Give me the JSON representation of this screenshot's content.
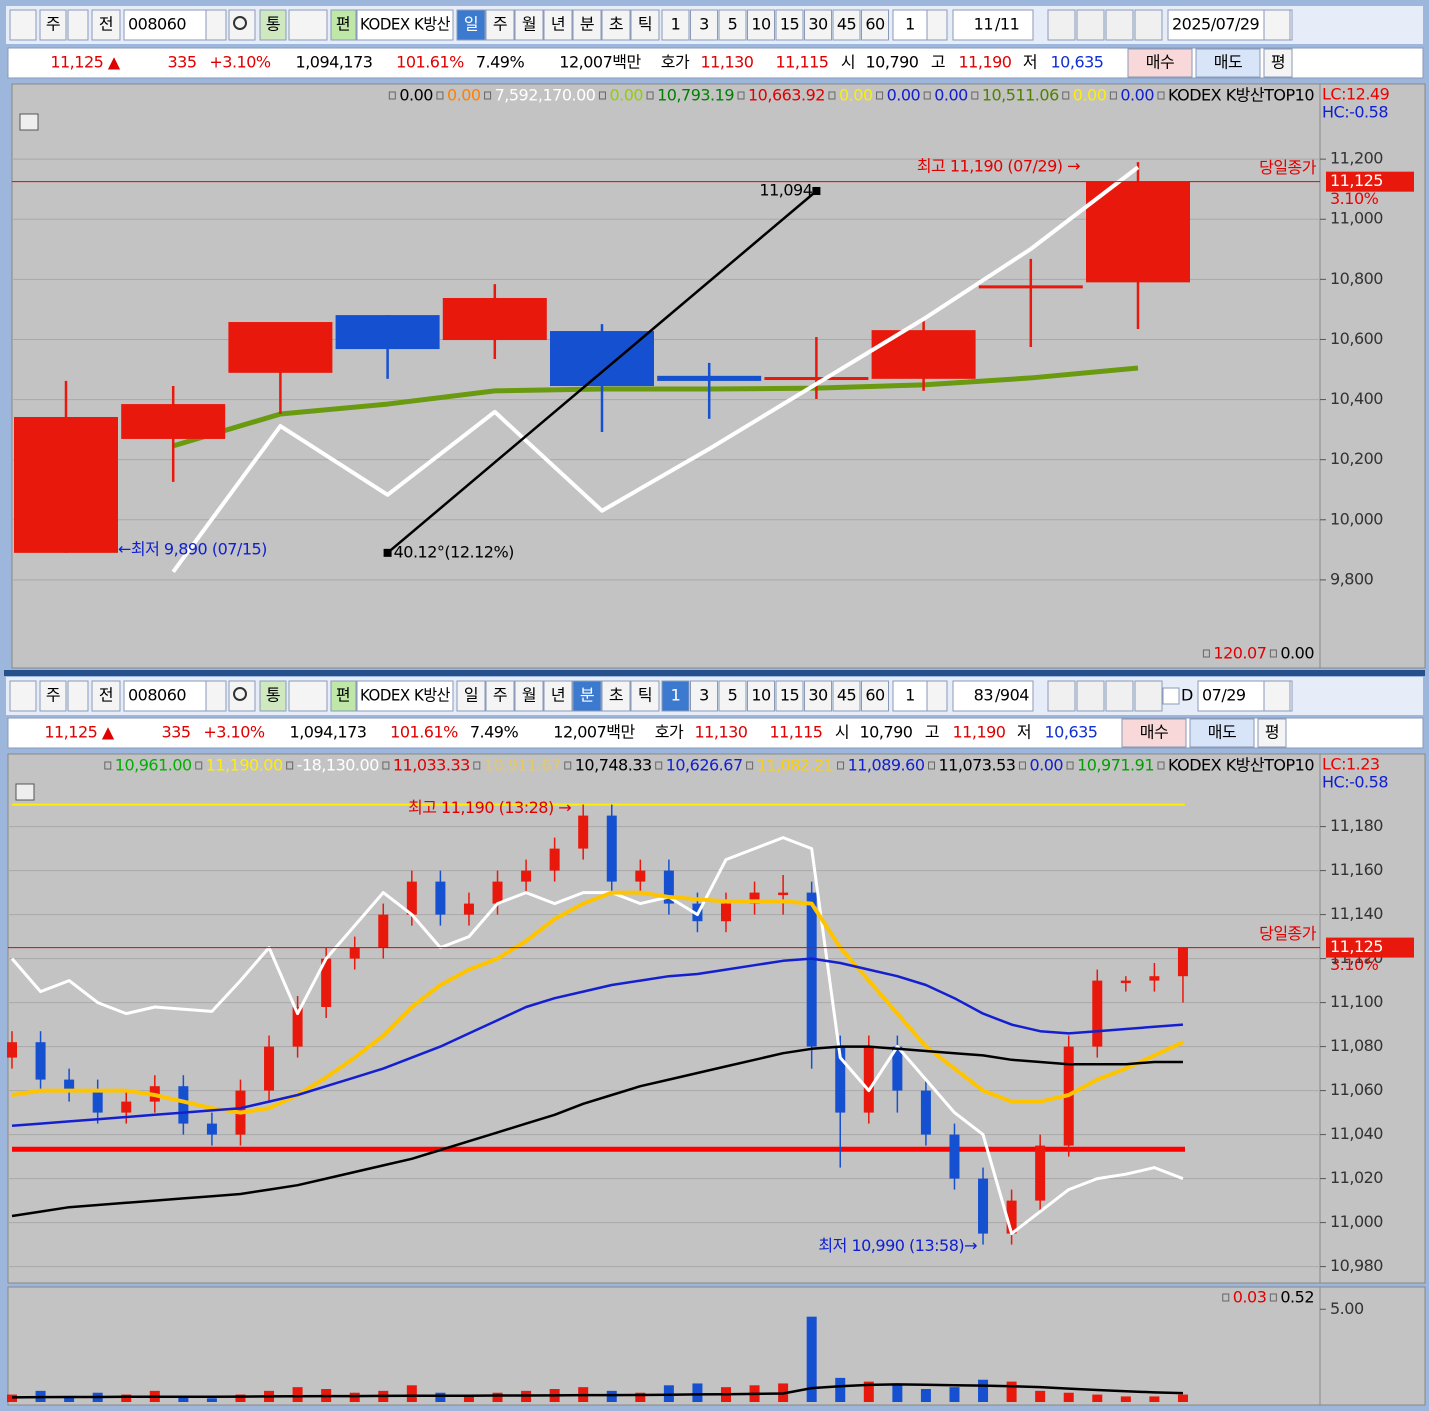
{
  "toolbars": [
    {
      "market": "주",
      "prev": "전",
      "code": "008060",
      "tong": "통",
      "pyeon": "편",
      "name": "KODEX K방산",
      "periods": [
        "일",
        "주",
        "월",
        "년",
        "분",
        "초",
        "틱"
      ],
      "active_period": 0,
      "intervals": [
        "1",
        "3",
        "5",
        "10",
        "15",
        "30",
        "45",
        "60"
      ],
      "active_interval": -1,
      "multiplier": "1",
      "count": "11",
      "total": "/11",
      "date": "2025/07/29"
    },
    {
      "market": "주",
      "prev": "전",
      "code": "008060",
      "tong": "통",
      "pyeon": "편",
      "name": "KODEX K방산",
      "periods": [
        "일",
        "주",
        "월",
        "년",
        "분",
        "초",
        "틱"
      ],
      "active_period": 4,
      "intervals": [
        "1",
        "3",
        "5",
        "10",
        "15",
        "30",
        "45",
        "60"
      ],
      "active_interval": 0,
      "multiplier": "1",
      "count": "83",
      "total": "/904",
      "check": "D",
      "date": "07/29"
    }
  ],
  "info_bar": {
    "items": [
      {
        "text": "11,125 ▲",
        "color": "#e00000"
      },
      {
        "text": "335",
        "color": "#e00000"
      },
      {
        "text": "+3.10%",
        "color": "#e00000"
      },
      {
        "text": "1,094,173",
        "color": "#000000"
      },
      {
        "text": "101.61%",
        "color": "#e00000"
      },
      {
        "text": "7.49%",
        "color": "#000000"
      },
      {
        "text": "12,007백만",
        "color": "#000000"
      },
      {
        "text": "호가",
        "color": "#000000"
      },
      {
        "text": "11,130",
        "color": "#e00000"
      },
      {
        "text": "11,115",
        "color": "#e00000"
      },
      {
        "text": "시",
        "color": "#000000"
      },
      {
        "text": "10,790",
        "color": "#000000"
      },
      {
        "text": "고",
        "color": "#000000"
      },
      {
        "text": "11,190",
        "color": "#e00000"
      },
      {
        "text": "저",
        "color": "#000000"
      },
      {
        "text": "10,635",
        "color": "#1030d0"
      }
    ],
    "buttons": [
      "매수",
      "매도",
      "평"
    ]
  },
  "chart_data": [
    {
      "type": "candlestick",
      "up_color": "#e8180c",
      "down_color": "#1450d0",
      "open": [
        9890,
        10269,
        10489,
        10681,
        10598,
        10628,
        10479,
        10465,
        10469,
        10770,
        10790
      ],
      "high": [
        10462,
        10445,
        10658,
        10681,
        10784,
        10651,
        10522,
        10608,
        10668,
        10868,
        11190
      ],
      "low": [
        9890,
        10126,
        10352,
        10469,
        10535,
        10292,
        10336,
        10402,
        10429,
        10575,
        10635
      ],
      "close": [
        10342,
        10385,
        10658,
        10568,
        10738,
        10445,
        10462,
        10475,
        10631,
        10780,
        11125
      ],
      "series": [
        {
          "color": "#6a9a10",
          "width": 5,
          "values": [
            null,
            10246,
            10352,
            10385,
            10429,
            10435,
            10435,
            10438,
            10449,
            10472,
            10505
          ]
        },
        {
          "color": "#ffffff",
          "width": 4,
          "values": [
            null,
            9827,
            10312,
            10083,
            10359,
            10030,
            10236,
            10452,
            10668,
            10901,
            11173
          ]
        }
      ],
      "ylim": [
        9600,
        11450
      ],
      "yticks": [
        {
          "value": 11200,
          "label": "11,200"
        },
        {
          "value": 11000,
          "label": "11,000"
        },
        {
          "value": 10800,
          "label": "10,800"
        },
        {
          "value": 10600,
          "label": "10,600"
        },
        {
          "value": 10400,
          "label": "10,400"
        },
        {
          "value": 10200,
          "label": "10,200"
        },
        {
          "value": 10000,
          "label": "10,000"
        },
        {
          "value": 9800,
          "label": "9,800"
        }
      ],
      "grid": true,
      "last": {
        "value": 11125,
        "label": "11,125",
        "change": "3.10%"
      },
      "trendline": {
        "values": [
          9890,
          11094
        ],
        "end_label": "11,094",
        "angle_label": "40.12°(12.12%)"
      },
      "annotations": [
        {
          "text": "최고 11,190 (07/29) →",
          "color": "#e00000"
        },
        {
          "text": "←최저 9,890 (07/15)",
          "color": "#1020d0"
        },
        {
          "text": "당일종가",
          "color": "#e00000"
        }
      ],
      "legend": [
        {
          "text": "0.00",
          "color": "#000000"
        },
        {
          "text": "0.00",
          "color": "#ff8000"
        },
        {
          "text": "7,592,170.00",
          "color": "#ffffff"
        },
        {
          "text": "0.00",
          "color": "#90d000"
        },
        {
          "text": "10,793.19",
          "color": "#008000"
        },
        {
          "text": "10,663.92",
          "color": "#e00000"
        },
        {
          "text": "0.00",
          "color": "#ffee00"
        },
        {
          "text": "0.00",
          "color": "#1020d0"
        },
        {
          "text": "0.00",
          "color": "#1020d0"
        },
        {
          "text": "10,511.06",
          "color": "#508000"
        },
        {
          "text": "0.00",
          "color": "#ffee00"
        },
        {
          "text": "0.00",
          "color": "#1020d0"
        },
        {
          "text": "KODEX K방산TOP10",
          "color": "#000000"
        }
      ],
      "lc": "LC:12.49",
      "hc": "HC:-0.58",
      "sub_legend": [
        {
          "text": "120.07",
          "color": "#e00000"
        },
        {
          "text": "0.00",
          "color": "#000000"
        }
      ]
    },
    {
      "type": "candlestick",
      "up_color": "#e8180c",
      "down_color": "#1450d0",
      "open": [
        11075,
        11082,
        11065,
        11060,
        11050,
        11055,
        11062,
        11045,
        11040,
        11060,
        11080,
        11098,
        11120,
        11125,
        11140,
        11155,
        11140,
        11145,
        11155,
        11160,
        11170,
        11185,
        11155,
        11160,
        11145,
        11137,
        11145,
        11150,
        11150,
        11080,
        11050,
        11080,
        11060,
        11040,
        11020,
        10995,
        11010,
        11035,
        11080,
        11110,
        11110,
        11112
      ],
      "high": [
        11087,
        11087,
        11070,
        11065,
        11060,
        11067,
        11067,
        11050,
        11065,
        11085,
        11103,
        11125,
        11130,
        11145,
        11160,
        11160,
        11150,
        11160,
        11165,
        11175,
        11190,
        11190,
        11165,
        11165,
        11150,
        11150,
        11155,
        11158,
        11155,
        11085,
        11085,
        11085,
        11065,
        11045,
        11025,
        11015,
        11040,
        11085,
        11115,
        11112,
        11118,
        11125
      ],
      "low": [
        11070,
        11060,
        11055,
        11045,
        11045,
        11050,
        11040,
        11035,
        11035,
        11055,
        11075,
        11093,
        11115,
        11120,
        11135,
        11135,
        11135,
        11140,
        11150,
        11155,
        11165,
        11150,
        11150,
        11140,
        11132,
        11132,
        11140,
        11140,
        11070,
        11025,
        11045,
        11050,
        11035,
        11015,
        10990,
        10990,
        11005,
        11030,
        11075,
        11105,
        11105,
        11100
      ],
      "close": [
        11082,
        11065,
        11060,
        11050,
        11055,
        11062,
        11045,
        11040,
        11060,
        11080,
        11098,
        11120,
        11125,
        11140,
        11155,
        11140,
        11145,
        11155,
        11160,
        11170,
        11185,
        11155,
        11160,
        11145,
        11137,
        11145,
        11150,
        11150,
        11080,
        11050,
        11080,
        11060,
        11040,
        11020,
        10995,
        11010,
        11035,
        11080,
        11110,
        11110,
        11112,
        11125
      ],
      "series": [
        {
          "color": "#ffffff",
          "width": 3,
          "values": [
            11120,
            11105,
            11110,
            11100,
            11095,
            11098,
            11097,
            11096,
            11110,
            11125,
            11095,
            11120,
            11135,
            11150,
            11140,
            11125,
            11130,
            11145,
            11150,
            11145,
            11150,
            11150,
            11145,
            11148,
            11140,
            11165,
            11170,
            11175,
            11170,
            11075,
            11060,
            11080,
            11065,
            11050,
            11040,
            10995,
            11005,
            11015,
            11020,
            11022,
            11025,
            11020
          ]
        },
        {
          "color": "#ffc400",
          "width": 4,
          "values": [
            11058,
            11060,
            11060,
            11060,
            11060,
            11058,
            11055,
            11052,
            11050,
            11052,
            11058,
            11066,
            11075,
            11085,
            11098,
            11108,
            11115,
            11120,
            11128,
            11138,
            11145,
            11150,
            11150,
            11148,
            11147,
            11146,
            11146,
            11146,
            11145,
            11125,
            11110,
            11095,
            11080,
            11070,
            11060,
            11055,
            11055,
            11058,
            11065,
            11070,
            11076,
            11082
          ]
        },
        {
          "color": "#1420d0",
          "width": 2.5,
          "values": [
            11044,
            11045,
            11046,
            11047,
            11048,
            11049,
            11050,
            11051,
            11052,
            11055,
            11058,
            11062,
            11066,
            11070,
            11075,
            11080,
            11086,
            11092,
            11098,
            11102,
            11105,
            11108,
            11110,
            11112,
            11113,
            11115,
            11117,
            11119,
            11120,
            11118,
            11115,
            11112,
            11108,
            11102,
            11095,
            11090,
            11087,
            11086,
            11087,
            11088,
            11089,
            11090
          ]
        },
        {
          "color": "#000000",
          "width": 2.5,
          "values": [
            11003,
            11005,
            11007,
            11008,
            11009,
            11010,
            11011,
            11012,
            11013,
            11015,
            11017,
            11020,
            11023,
            11026,
            11029,
            11033,
            11037,
            11041,
            11045,
            11049,
            11054,
            11058,
            11062,
            11065,
            11068,
            11071,
            11074,
            11077,
            11079,
            11080,
            11080,
            11079,
            11078,
            11077,
            11076,
            11074,
            11073,
            11072,
            11072,
            11072,
            11073,
            11073
          ]
        }
      ],
      "hlines": [
        {
          "value": 11190,
          "color": "#ffee00",
          "width": 2
        },
        {
          "value": 11033.33,
          "color": "#ff0000",
          "width": 5
        }
      ],
      "ylim": [
        10973,
        11213
      ],
      "yticks": [
        {
          "value": 11180,
          "label": "11,180"
        },
        {
          "value": 11160,
          "label": "11,160"
        },
        {
          "value": 11140,
          "label": "11,140"
        },
        {
          "value": 11120,
          "label": "11,120"
        },
        {
          "value": 11100,
          "label": "11,100"
        },
        {
          "value": 11080,
          "label": "11,080"
        },
        {
          "value": 11060,
          "label": "11,060"
        },
        {
          "value": 11040,
          "label": "11,040"
        },
        {
          "value": 11020,
          "label": "11,020"
        },
        {
          "value": 11000,
          "label": "11,000"
        },
        {
          "value": 10980,
          "label": "10,980"
        }
      ],
      "grid": true,
      "last": {
        "value": 11125,
        "label": "11,125",
        "change": "3.10%"
      },
      "annotations": [
        {
          "text": "최고 11,190 (13:28) →",
          "color": "#e00000"
        },
        {
          "text": "최저 10,990 (13:58)→",
          "color": "#1020d0"
        },
        {
          "text": "당일종가",
          "color": "#e00000"
        }
      ],
      "legend": [
        {
          "text": "10,961.00",
          "color": "#00b000"
        },
        {
          "text": "11,190.00",
          "color": "#ffee00"
        },
        {
          "text": "-18,130.00",
          "color": "#ffffff"
        },
        {
          "text": "11,033.33",
          "color": "#e00000"
        },
        {
          "text": "10,911.67",
          "color": "#e8c860"
        },
        {
          "text": "10,748.33",
          "color": "#000000"
        },
        {
          "text": "10,626.67",
          "color": "#1020d0"
        },
        {
          "text": "11,082.21",
          "color": "#ffd000"
        },
        {
          "text": "11,089.60",
          "color": "#1020d0"
        },
        {
          "text": "11,073.53",
          "color": "#000000"
        },
        {
          "text": "0.00",
          "color": "#1020d0"
        },
        {
          "text": "10,971.91",
          "color": "#00a000"
        },
        {
          "text": "KODEX K방산TOP10",
          "color": "#000000"
        }
      ],
      "lc": "LC:1.23",
      "hc": "HC:-0.58"
    },
    {
      "type": "bar",
      "values": [
        0.4,
        0.6,
        0.3,
        0.5,
        0.4,
        0.6,
        0.3,
        0.2,
        0.4,
        0.6,
        0.8,
        0.7,
        0.5,
        0.6,
        0.9,
        0.5,
        0.4,
        0.5,
        0.6,
        0.7,
        0.8,
        0.6,
        0.5,
        0.9,
        1.0,
        0.8,
        0.9,
        1.0,
        4.6,
        1.3,
        1.1,
        0.9,
        0.7,
        0.8,
        1.2,
        1.1,
        0.6,
        0.5,
        0.4,
        0.3,
        0.3,
        0.4
      ],
      "series": [
        {
          "color": "#000000",
          "width": 2.5,
          "values": [
            0.25,
            0.26,
            0.27,
            0.27,
            0.28,
            0.28,
            0.28,
            0.28,
            0.29,
            0.3,
            0.31,
            0.32,
            0.32,
            0.33,
            0.34,
            0.34,
            0.34,
            0.35,
            0.35,
            0.36,
            0.37,
            0.37,
            0.38,
            0.39,
            0.41,
            0.42,
            0.44,
            0.46,
            0.75,
            0.85,
            0.92,
            0.95,
            0.93,
            0.9,
            0.88,
            0.85,
            0.8,
            0.72,
            0.65,
            0.58,
            0.52,
            0.48
          ]
        }
      ],
      "ylim": [
        0,
        6.2
      ],
      "yticks": [
        {
          "value": 5,
          "label": "5.00"
        }
      ],
      "legend": [
        {
          "text": "0.03",
          "color": "#e00000"
        },
        {
          "text": "0.52",
          "color": "#000000"
        }
      ]
    }
  ]
}
